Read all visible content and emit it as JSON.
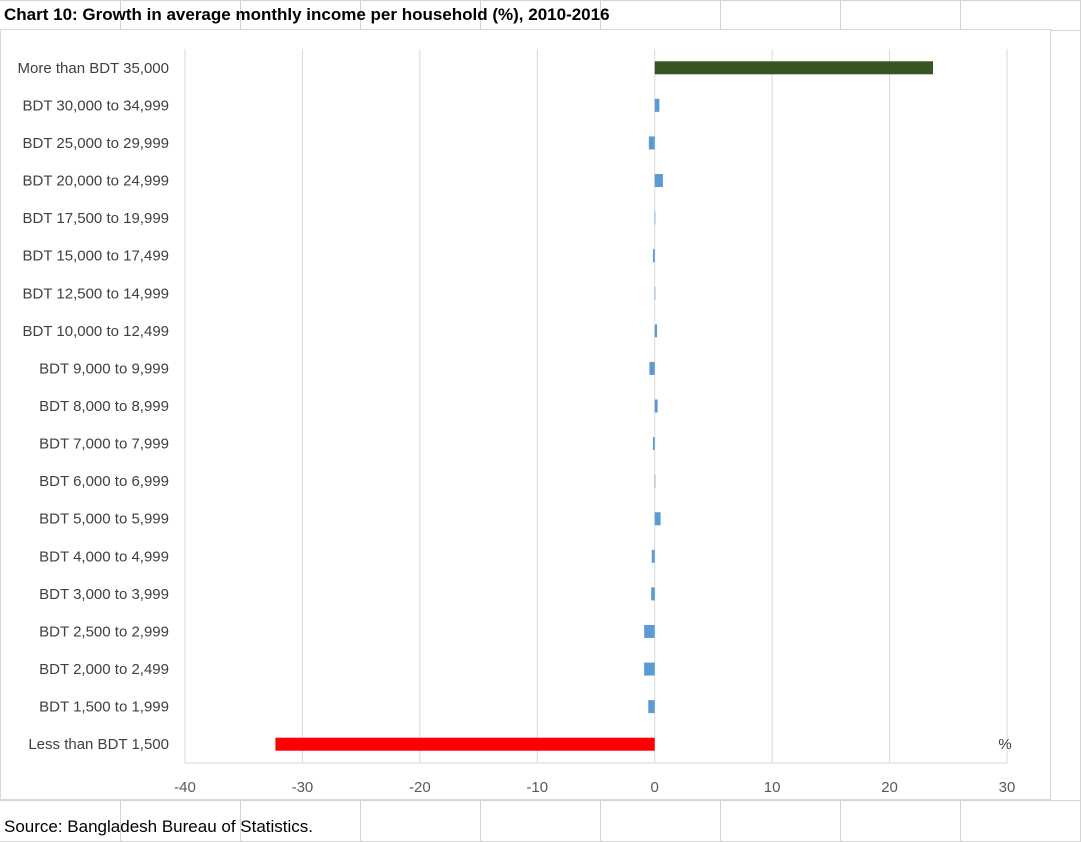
{
  "title": "Chart 10: Growth in average monthly income per household (%), 2010-2016",
  "source": "Source: Bangladesh Bureau of Statistics.",
  "chart_data": {
    "type": "bar",
    "orientation": "horizontal",
    "categories": [
      "More than BDT 35,000",
      "BDT 30,000 to 34,999",
      "BDT 25,000 to 29,999",
      "BDT 20,000 to 24,999",
      "BDT 17,500 to 19,999",
      "BDT 15,000 to 17,499",
      "BDT 12,500 to 14,999",
      "BDT 10,000 to 12,499",
      "BDT 9,000 to 9,999",
      "BDT 8,000 to 8,999",
      "BDT 7,000 to 7,999",
      "BDT 6,000 to 6,999",
      "BDT 5,000 to 5,999",
      "BDT 4,000 to 4,999",
      "BDT 3,000 to 3,999",
      "BDT 2,500 to 2,999",
      "BDT 2,000 to 2,499",
      "BDT 1,500 to 1,999",
      "Less than BDT 1,500"
    ],
    "values": [
      23.7,
      0.4,
      -0.5,
      0.7,
      0.05,
      -0.15,
      0.0,
      0.2,
      -0.45,
      0.25,
      -0.15,
      0.0,
      0.5,
      -0.25,
      -0.3,
      -0.9,
      -0.9,
      -0.55,
      -32.3
    ],
    "bar_colors": [
      "#375623",
      "#5b9bd5",
      "#5b9bd5",
      "#5b9bd5",
      "#5b9bd5",
      "#5b9bd5",
      "#5b9bd5",
      "#5b9bd5",
      "#5b9bd5",
      "#5b9bd5",
      "#5b9bd5",
      "#5b9bd5",
      "#5b9bd5",
      "#5b9bd5",
      "#5b9bd5",
      "#5b9bd5",
      "#5b9bd5",
      "#5b9bd5",
      "#ff0000"
    ],
    "xlim": [
      -40,
      30
    ],
    "xticks": [
      -40,
      -30,
      -20,
      -10,
      0,
      10,
      20,
      30
    ],
    "xlabel": "%",
    "ylabel": "",
    "grid": "vertical",
    "legend": "none"
  }
}
